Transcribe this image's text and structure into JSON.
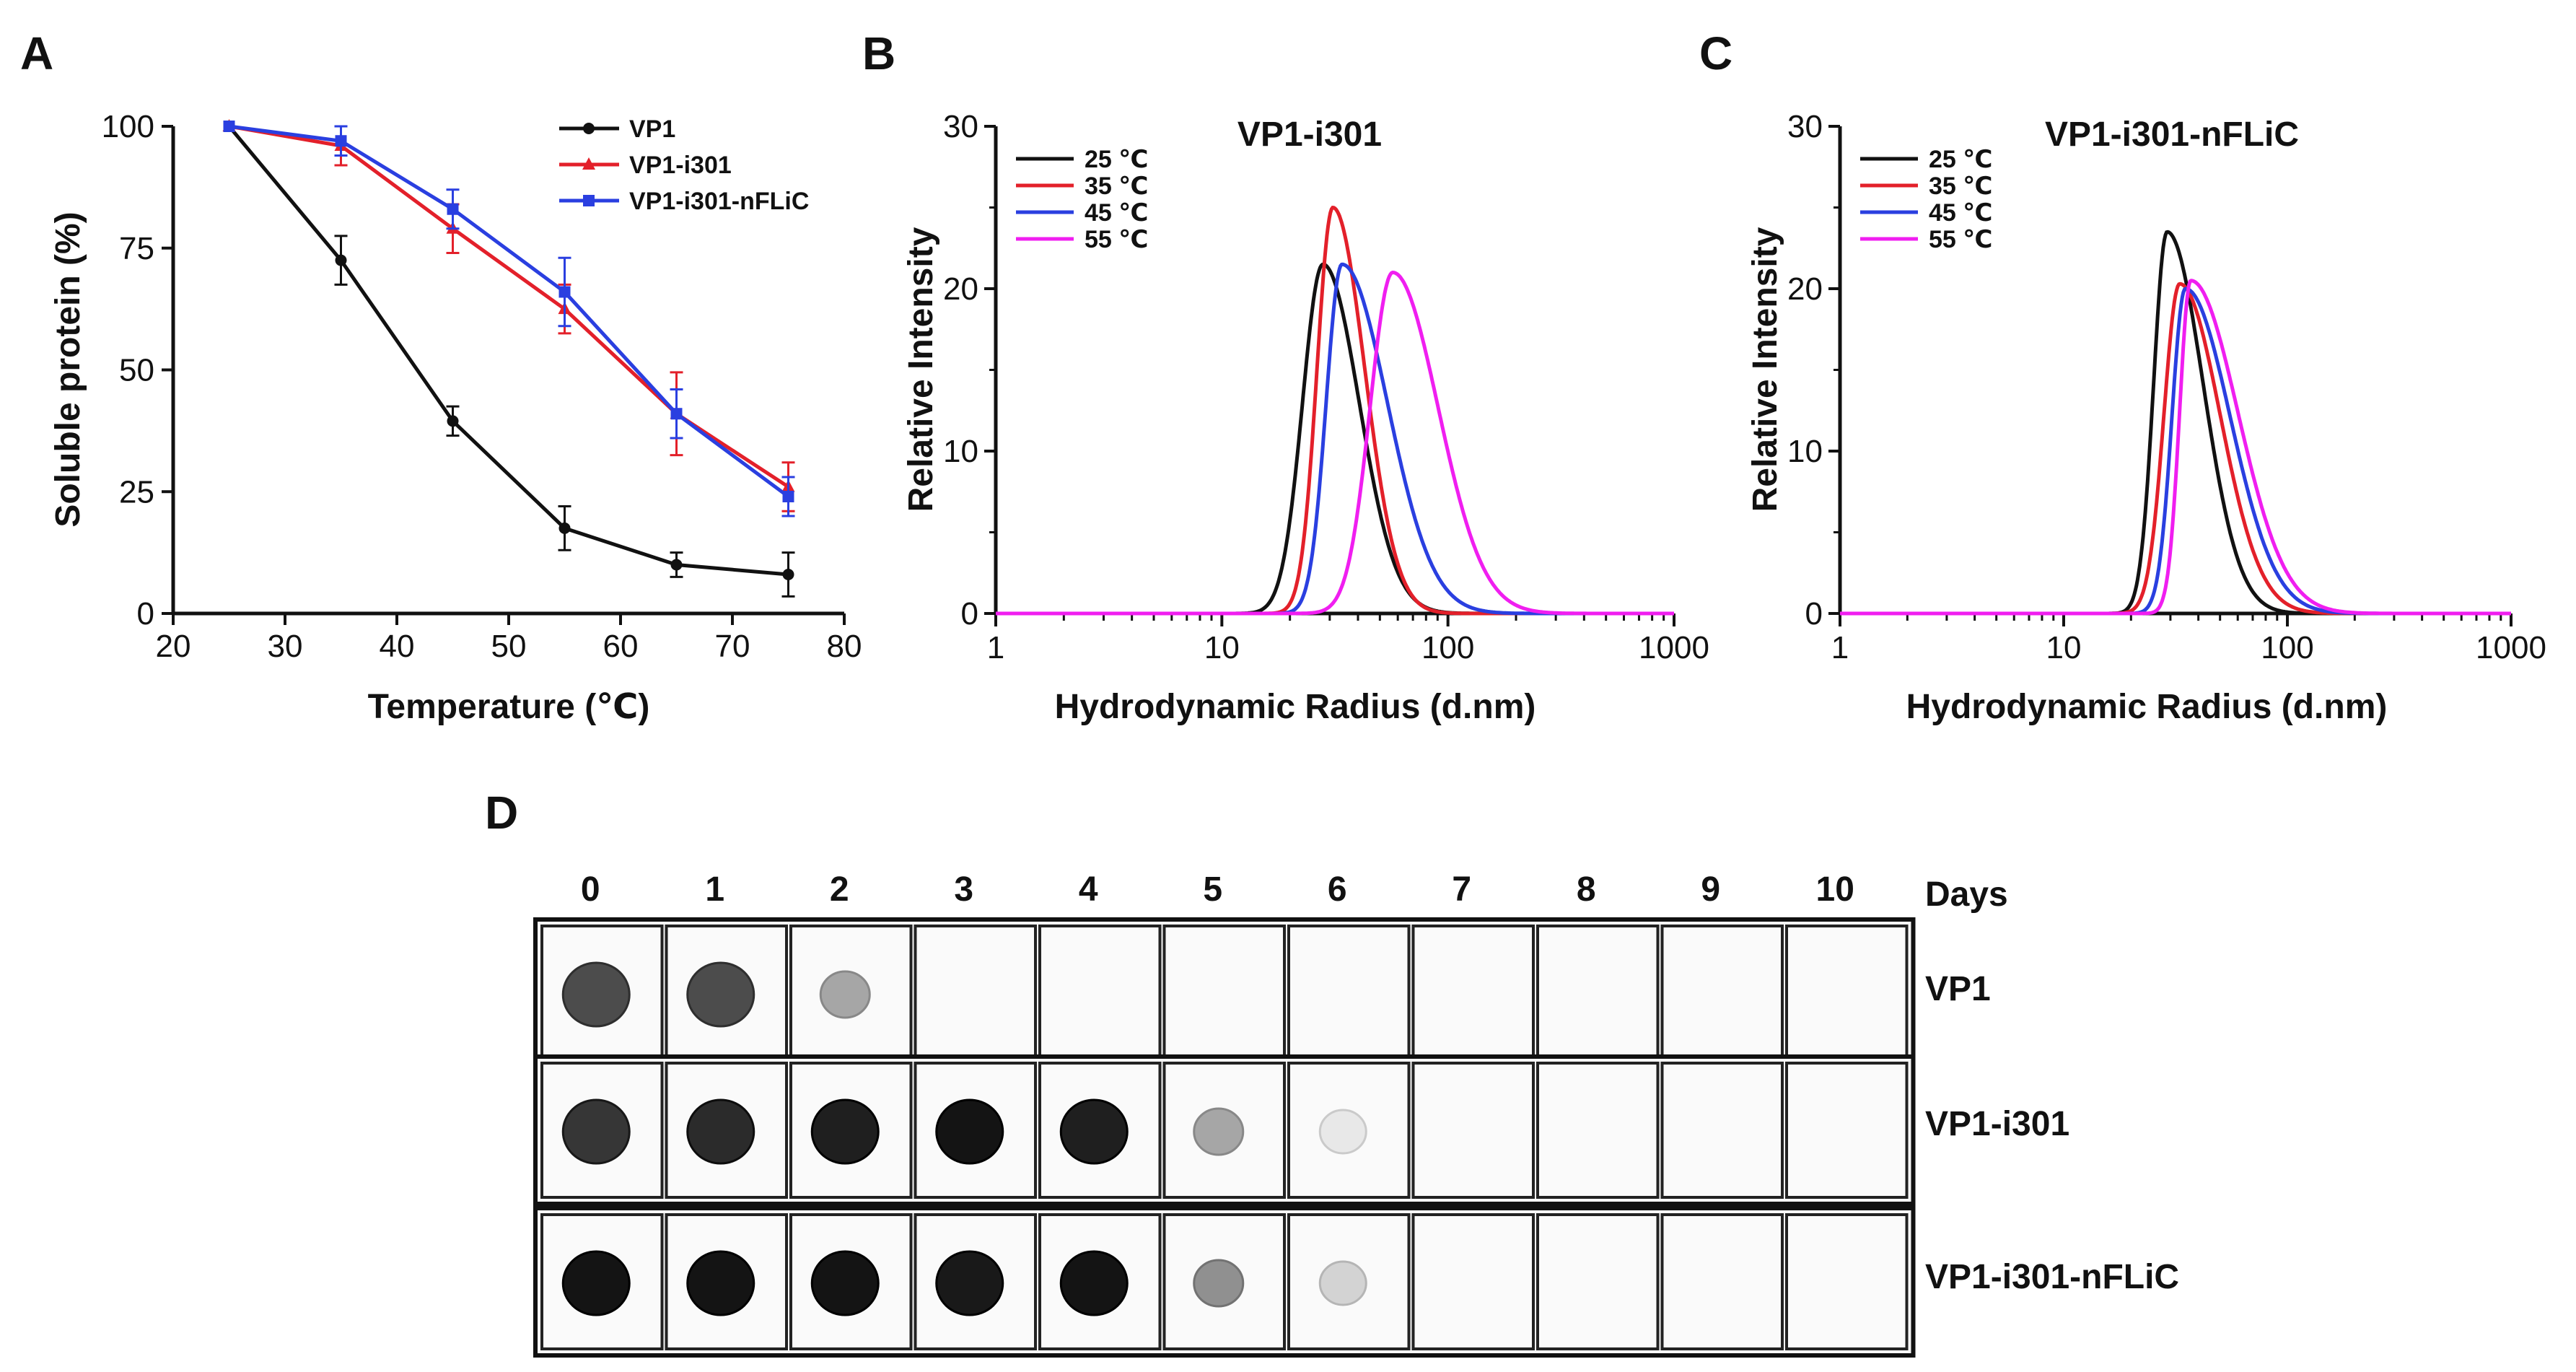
{
  "panels": {
    "a": {
      "letter": "A"
    },
    "b": {
      "letter": "B"
    },
    "c": {
      "letter": "C"
    },
    "d": {
      "letter": "D"
    }
  },
  "colors": {
    "black": "#111111",
    "red": "#e3202a",
    "blue": "#2a3fe0",
    "magenta": "#f01ef0"
  },
  "chart_data": [
    {
      "id": "A",
      "type": "line",
      "title": "",
      "xlabel": "Temperature (℃)",
      "ylabel": "Soluble protein (%)",
      "xlim": [
        20,
        80
      ],
      "ylim": [
        0,
        100
      ],
      "xticks": [
        "20",
        "30",
        "40",
        "50",
        "60",
        "70",
        "80"
      ],
      "yticks": [
        "0",
        "25",
        "50",
        "75",
        "100"
      ],
      "legend_position": "top-right",
      "series": [
        {
          "name": "VP1",
          "color": "#111111",
          "marker": "circle",
          "x": [
            25,
            35,
            45,
            55,
            65,
            75
          ],
          "y": [
            100,
            72.5,
            39.5,
            17.5,
            10,
            8
          ],
          "err": [
            0,
            5,
            3,
            4.5,
            2.5,
            4.5
          ]
        },
        {
          "name": "VP1-i301",
          "color": "#e3202a",
          "marker": "triangle",
          "x": [
            25,
            35,
            45,
            55,
            65,
            75
          ],
          "y": [
            100,
            96,
            79,
            62.5,
            41,
            26
          ],
          "err": [
            0,
            4,
            5,
            5,
            8.5,
            5
          ]
        },
        {
          "name": "VP1-i301-nFLiC",
          "color": "#2a3fe0",
          "marker": "square",
          "x": [
            25,
            35,
            45,
            55,
            65,
            75
          ],
          "y": [
            100,
            97,
            83,
            66,
            41,
            24
          ],
          "err": [
            0,
            3,
            4,
            7,
            5,
            4
          ]
        }
      ]
    },
    {
      "id": "B",
      "type": "line",
      "title": "VP1-i301",
      "xlabel": "Hydrodynamic Radius (d.nm)",
      "ylabel": "Relative Intensity",
      "xscale": "log",
      "xlim": [
        1,
        1000
      ],
      "ylim": [
        0,
        30
      ],
      "xticks": [
        "1",
        "10",
        "100",
        "1000"
      ],
      "yticks": [
        "0",
        "10",
        "20",
        "30"
      ],
      "legend_position": "top-left",
      "series": [
        {
          "name": "25 ℃",
          "color": "#111111",
          "peak_x": 28,
          "peak_y": 21.5,
          "sigma_left": 0.09,
          "sigma_right": 0.16
        },
        {
          "name": "35 ℃",
          "color": "#e3202a",
          "peak_x": 31,
          "peak_y": 25,
          "sigma_left": 0.07,
          "sigma_right": 0.14
        },
        {
          "name": "45 ℃",
          "color": "#2a3fe0",
          "peak_x": 34,
          "peak_y": 21.5,
          "sigma_left": 0.07,
          "sigma_right": 0.2
        },
        {
          "name": "55 ℃",
          "color": "#f01ef0",
          "peak_x": 57,
          "peak_y": 21,
          "sigma_left": 0.1,
          "sigma_right": 0.2
        }
      ]
    },
    {
      "id": "C",
      "type": "line",
      "title": "VP1-i301-nFLiC",
      "xlabel": "Hydrodynamic Radius (d.nm)",
      "ylabel": "Relative Intensity",
      "xscale": "log",
      "xlim": [
        1,
        1000
      ],
      "ylim": [
        0,
        30
      ],
      "xticks": [
        "1",
        "10",
        "100",
        "1000"
      ],
      "yticks": [
        "0",
        "10",
        "20",
        "30"
      ],
      "legend_position": "top-left",
      "series": [
        {
          "name": "25 ℃",
          "color": "#111111",
          "peak_x": 29,
          "peak_y": 23.5,
          "sigma_left": 0.06,
          "sigma_right": 0.16
        },
        {
          "name": "35 ℃",
          "color": "#e3202a",
          "peak_x": 33,
          "peak_y": 20.3,
          "sigma_left": 0.07,
          "sigma_right": 0.18
        },
        {
          "name": "45 ℃",
          "color": "#2a3fe0",
          "peak_x": 35,
          "peak_y": 20,
          "sigma_left": 0.06,
          "sigma_right": 0.2
        },
        {
          "name": "55 ℃",
          "color": "#f01ef0",
          "peak_x": 37,
          "peak_y": 20.5,
          "sigma_left": 0.05,
          "sigma_right": 0.21
        }
      ]
    },
    {
      "id": "D",
      "type": "table",
      "title": "",
      "column_header": "Days",
      "days": [
        "0",
        "1",
        "2",
        "3",
        "4",
        "5",
        "6",
        "7",
        "8",
        "9",
        "10"
      ],
      "rows": [
        {
          "label": "VP1",
          "intensity": [
            0.75,
            0.75,
            0.35,
            0,
            0,
            0,
            0,
            0,
            0,
            0,
            0
          ]
        },
        {
          "label": "VP1-i301",
          "intensity": [
            0.85,
            0.9,
            0.95,
            1.0,
            0.95,
            0.35,
            0.06,
            0,
            0,
            0,
            0
          ]
        },
        {
          "label": "VP1-i301-nFLiC",
          "intensity": [
            1.0,
            1.0,
            1.0,
            0.98,
            1.0,
            0.45,
            0.15,
            0,
            0,
            0,
            0
          ]
        }
      ]
    }
  ]
}
